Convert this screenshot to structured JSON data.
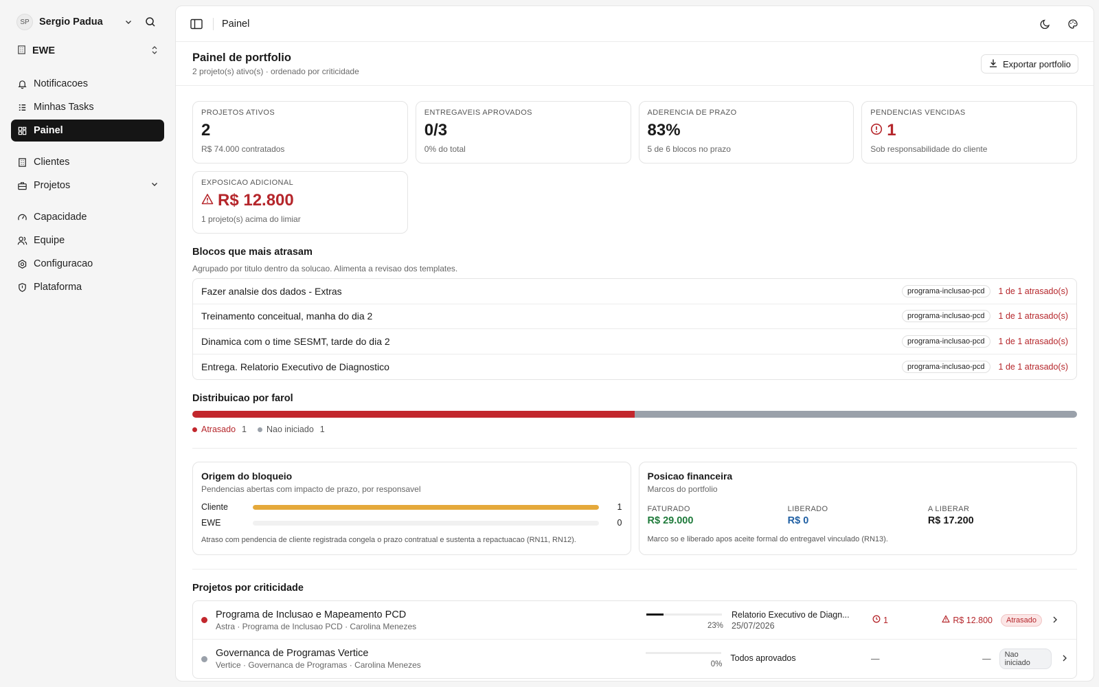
{
  "user": {
    "initials": "SP",
    "name": "Sergio Padua"
  },
  "org": {
    "name": "EWE"
  },
  "nav": {
    "group1": [
      {
        "label": "Notificacoes",
        "icon": "bell-icon"
      },
      {
        "label": "Minhas Tasks",
        "icon": "list-icon"
      },
      {
        "label": "Painel",
        "icon": "dashboard-icon",
        "active": true
      }
    ],
    "group2": [
      {
        "label": "Clientes",
        "icon": "building-icon"
      },
      {
        "label": "Projetos",
        "icon": "briefcase-icon"
      }
    ],
    "group3": [
      {
        "label": "Capacidade",
        "icon": "gauge-icon"
      },
      {
        "label": "Equipe",
        "icon": "users-icon"
      },
      {
        "label": "Configuracao",
        "icon": "gear-icon"
      },
      {
        "label": "Plataforma",
        "icon": "shield-icon"
      }
    ]
  },
  "topbar": {
    "breadcrumb": "Painel"
  },
  "header": {
    "title": "Painel de portfolio",
    "subtitle": "2 projeto(s) ativo(s) · ordenado por criticidade",
    "export_label": "Exportar portfolio"
  },
  "kpis": [
    {
      "label": "Projetos ativos",
      "value": "2",
      "foot": "R$ 74.000 contratados"
    },
    {
      "label": "Entregaveis aprovados",
      "value": "0/3",
      "foot": "0% do total"
    },
    {
      "label": "Aderencia de prazo",
      "value": "83%",
      "foot": "5 de 6 blocos no prazo"
    },
    {
      "label": "Pendencias vencidas",
      "value": "1",
      "foot": "Sob responsabilidade do cliente"
    },
    {
      "label": "Exposicao adicional",
      "value": "R$ 12.800",
      "foot": "1 projeto(s) acima do limiar"
    }
  ],
  "blocks": {
    "title": "Blocos que mais atrasam",
    "subtitle": "Agrupado por titulo dentro da solucao. Alimenta a revisao dos templates.",
    "items": [
      {
        "title": "Fazer analsie dos dados - Extras",
        "tag": "programa-inclusao-pcd",
        "count": "1 de 1 atrasado(s)"
      },
      {
        "title": "Treinamento conceitual, manha do dia 2",
        "tag": "programa-inclusao-pcd",
        "count": "1 de 1 atrasado(s)"
      },
      {
        "title": "Dinamica com o time SESMT, tarde do dia 2",
        "tag": "programa-inclusao-pcd",
        "count": "1 de 1 atrasado(s)"
      },
      {
        "title": "Entrega. Relatorio Executivo de Diagnostico",
        "tag": "programa-inclusao-pcd",
        "count": "1 de 1 atrasado(s)"
      }
    ]
  },
  "farol": {
    "title": "Distribuicao por farol",
    "segments": [
      {
        "label": "Atrasado",
        "count": "1",
        "fraction": 0.5,
        "color": "#c2272d"
      },
      {
        "label": "Nao iniciado",
        "count": "1",
        "fraction": 0.5,
        "color": "#9aa1aa"
      }
    ]
  },
  "bloqueio": {
    "title": "Origem do bloqueio",
    "subtitle": "Pendencias abertas com impacto de prazo, por responsavel",
    "rows": [
      {
        "label": "Cliente",
        "value": "1",
        "fraction": 1.0
      },
      {
        "label": "EWE",
        "value": "0",
        "fraction": 0.0
      }
    ],
    "note": "Atraso com pendencia de cliente registrada congela o prazo contratual e sustenta a repactuacao (RN11, RN12)."
  },
  "financeira": {
    "title": "Posicao financeira",
    "subtitle": "Marcos do portfolio",
    "items": [
      {
        "label": "Faturado",
        "value": "R$ 29.000",
        "color": "#1e7a3a"
      },
      {
        "label": "Liberado",
        "value": "R$ 0",
        "color": "#1f5fa3"
      },
      {
        "label": "A liberar",
        "value": "R$ 17.200",
        "color": "#1a1a1a"
      }
    ],
    "note": "Marco so e liberado apos aceite formal do entregavel vinculado (RN13)."
  },
  "projetos": {
    "title": "Projetos por criticidade",
    "items": [
      {
        "name": "Programa de Inclusao e Mapeamento PCD",
        "meta": "Astra · Programa de Inclusao PCD · Carolina Menezes",
        "progress_pct": 23,
        "progress_label": "23%",
        "next_title": "Relatorio Executivo de Diagn...",
        "next_date": "25/07/2026",
        "pendencias": "1",
        "exposicao": "R$ 12.800",
        "status": "Atrasado",
        "dot_color": "#c2272d"
      },
      {
        "name": "Governanca de Programas Vertice",
        "meta": "Vertice · Governanca de Programas · Carolina Menezes",
        "progress_pct": 0,
        "progress_label": "0%",
        "next_title": "Todos aprovados",
        "next_date": "",
        "pendencias": "—",
        "exposicao": "—",
        "status": "Nao iniciado",
        "dot_color": "#9aa1aa"
      }
    ]
  }
}
